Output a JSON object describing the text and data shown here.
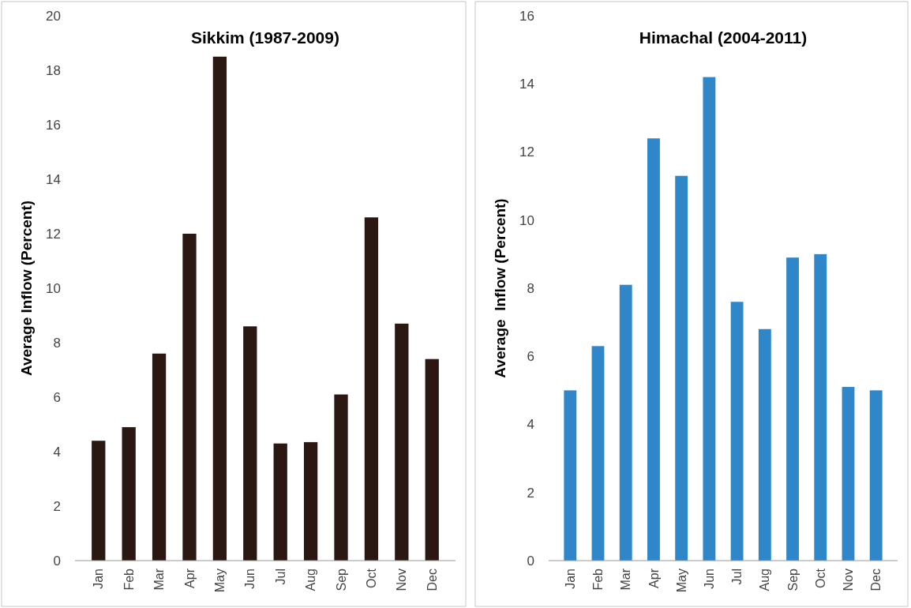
{
  "chart_data": [
    {
      "type": "bar",
      "title": "Sikkim (1987-2009)",
      "ylabel": "Average Inflow (Percent)",
      "categories": [
        "Jan",
        "Feb",
        "Mar",
        "Apr",
        "May",
        "Jun",
        "Jul",
        "Aug",
        "Sep",
        "Oct",
        "Nov",
        "Dec"
      ],
      "values": [
        4.4,
        4.9,
        7.6,
        12.0,
        18.5,
        8.6,
        4.3,
        4.35,
        6.1,
        12.6,
        8.7,
        7.4
      ],
      "color": "#2b1812",
      "ylim": [
        0,
        20
      ],
      "yticks": [
        0,
        2,
        4,
        6,
        8,
        10,
        12,
        14,
        16,
        18,
        20
      ]
    },
    {
      "type": "bar",
      "title": "Himachal (2004-2011)",
      "ylabel": "Average  Inflow (Percent)",
      "categories": [
        "Jan",
        "Feb",
        "Mar",
        "Apr",
        "May",
        "Jun",
        "Jul",
        "Aug",
        "Sep",
        "Oct",
        "Nov",
        "Dec"
      ],
      "values": [
        5.0,
        6.3,
        8.1,
        12.4,
        11.3,
        14.2,
        7.6,
        6.8,
        8.9,
        9.0,
        5.1,
        5.0
      ],
      "color": "#2f86c8",
      "ylim": [
        0,
        16
      ],
      "yticks": [
        0,
        2,
        4,
        6,
        8,
        10,
        12,
        14,
        16
      ]
    }
  ]
}
